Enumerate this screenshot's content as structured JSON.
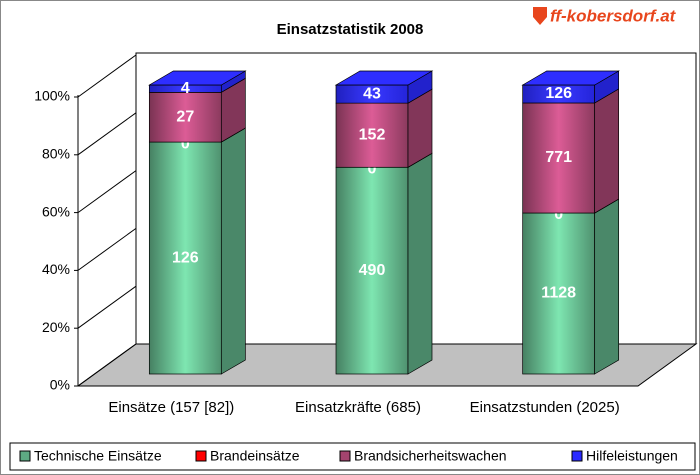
{
  "chart_data": {
    "type": "bar",
    "stacking": "percent",
    "title": "Einsatzstatistik 2008",
    "watermark": "ff-kobersdorf.at",
    "categories": [
      "Einsätze (157 [82])",
      "Einsatzkräfte (685)",
      "Einsatzstunden (2025)"
    ],
    "series": [
      {
        "name": "Technische Einsätze",
        "color": "#5daa83",
        "values": [
          126,
          490,
          1128
        ]
      },
      {
        "name": "Brandeinsätze",
        "color": "#ff0000",
        "values": [
          0,
          0,
          0
        ]
      },
      {
        "name": "Brandsicherheitswachen",
        "color": "#a3446f",
        "values": [
          27,
          152,
          771
        ]
      },
      {
        "name": "Hilfeleistungen",
        "color": "#2a2aff",
        "values": [
          4,
          43,
          126
        ]
      }
    ],
    "ylim": [
      0,
      100
    ],
    "yticks": [
      {
        "value": 0,
        "label": "0%"
      },
      {
        "value": 20,
        "label": "20%"
      },
      {
        "value": 40,
        "label": "40%"
      },
      {
        "value": 60,
        "label": "60%"
      },
      {
        "value": 80,
        "label": "80%"
      },
      {
        "value": 100,
        "label": "100%"
      }
    ],
    "grid": true,
    "legend": "bottom"
  }
}
